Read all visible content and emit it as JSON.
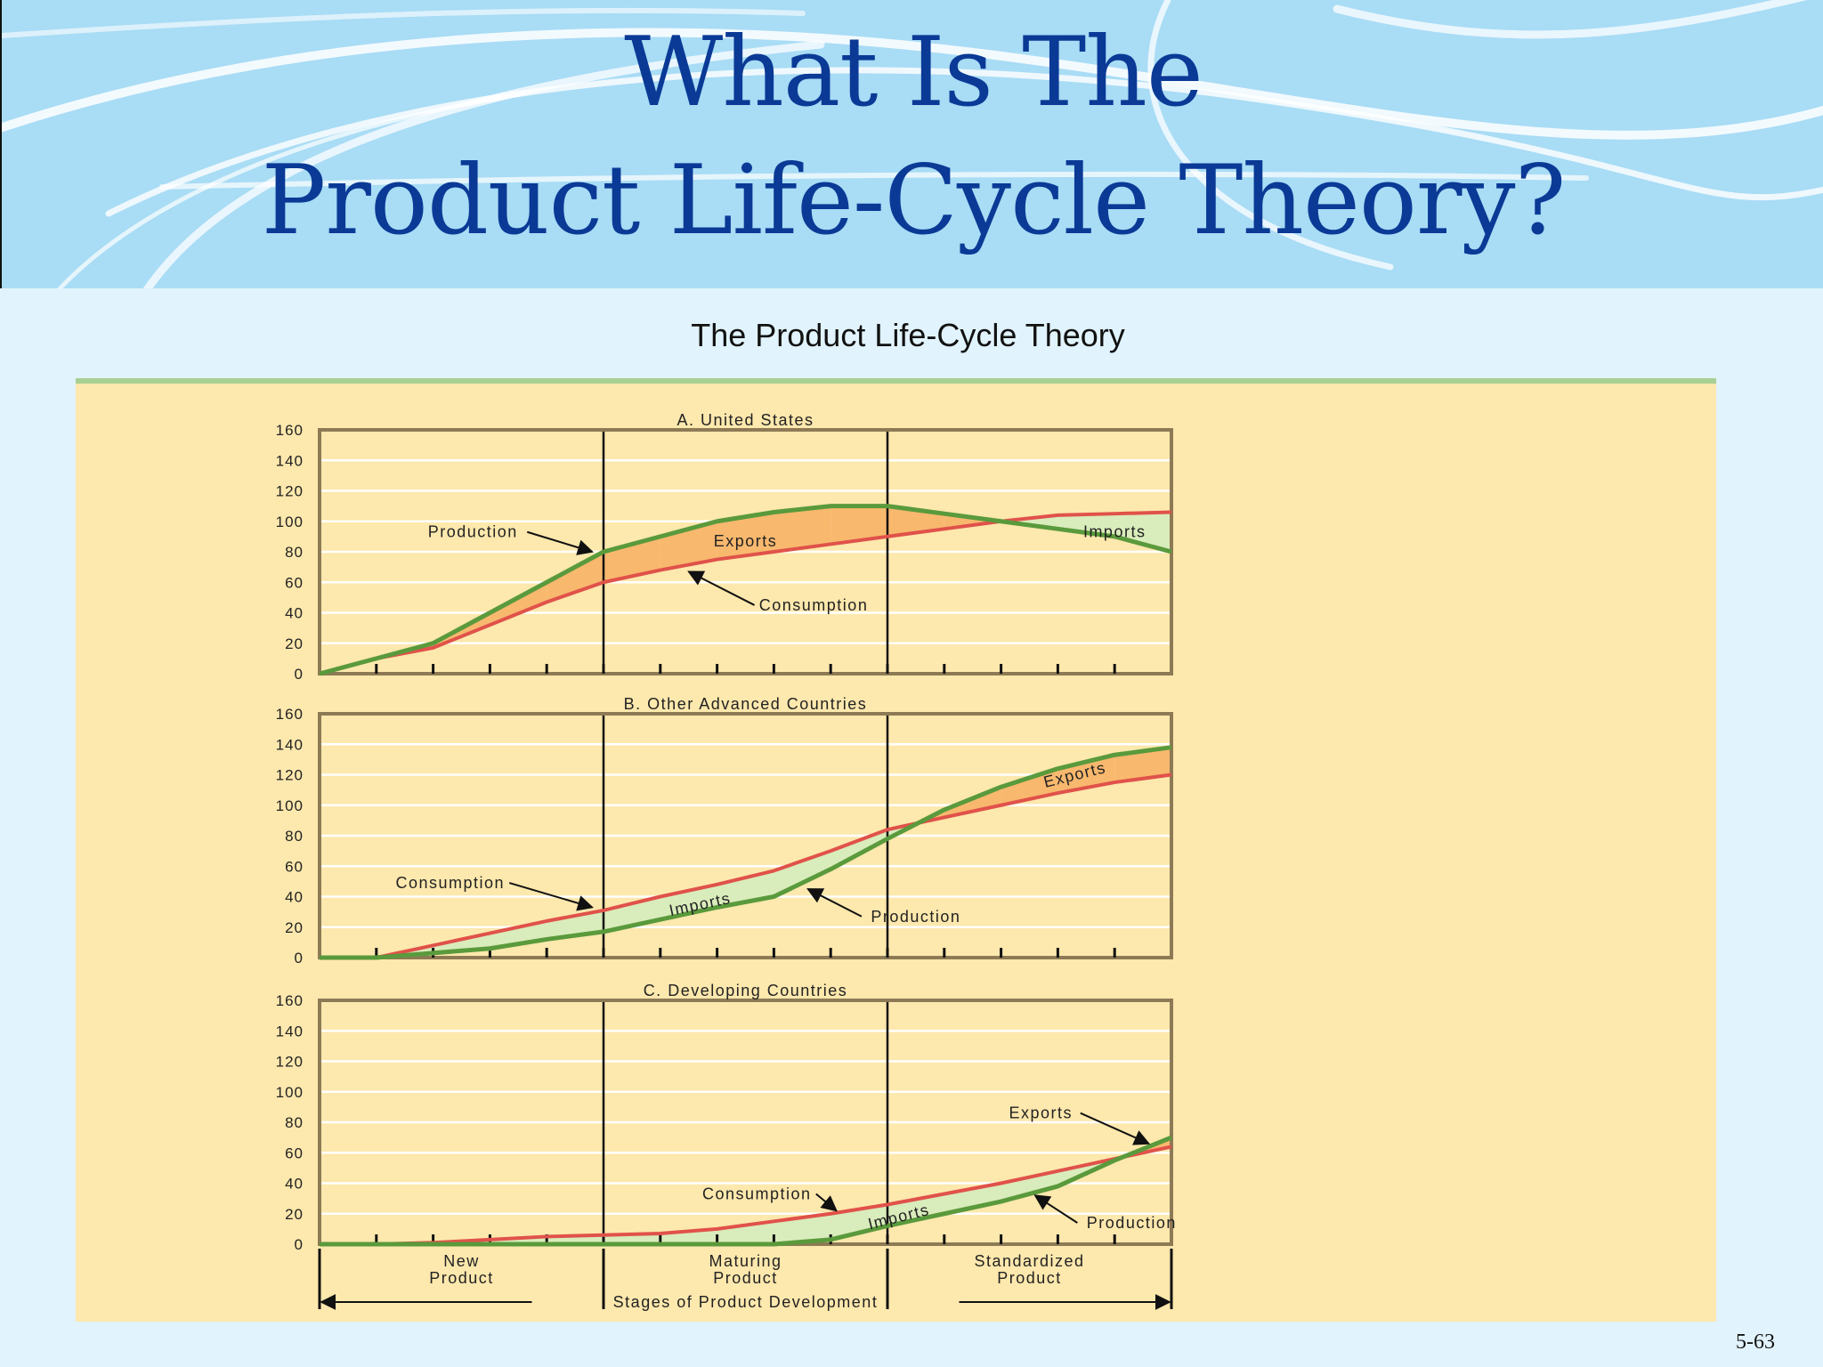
{
  "slide": {
    "title_line_1": "What Is The",
    "title_line_2": "Product Life-Cycle Theory?",
    "subtitle": "The Product Life-Cycle Theory",
    "slide_number": "5-63"
  },
  "colors": {
    "header_bg": "#a9dcf5",
    "title": "#0a3a96",
    "panel_bg": "#fde8ad",
    "production_line": "#5a9a3c",
    "consumption_line": "#e0524a",
    "export_fill": "#f8b86e",
    "import_fill": "#d9ecbb"
  },
  "chart_data": [
    {
      "type": "line",
      "title": "A. United States",
      "x": [
        0,
        1,
        2,
        3,
        4,
        5,
        6,
        7,
        8,
        9,
        10,
        11,
        12,
        13,
        14,
        15
      ],
      "ylim": [
        0,
        160
      ],
      "yticks": [
        "0",
        "20",
        "40",
        "60",
        "80",
        "100",
        "120",
        "140",
        "160"
      ],
      "series": [
        {
          "name": "Production",
          "values": [
            0,
            10,
            20,
            40,
            60,
            80,
            90,
            100,
            106,
            110,
            110,
            105,
            100,
            95,
            90,
            80
          ]
        },
        {
          "name": "Consumption",
          "values": [
            0,
            10,
            17,
            32,
            47,
            60,
            68,
            75,
            80,
            85,
            90,
            95,
            100,
            104,
            105,
            106
          ]
        }
      ],
      "annotations": [
        {
          "text": "Production",
          "x": 2.7,
          "y": 93,
          "arrow_to": [
            4.8,
            80
          ]
        },
        {
          "text": "Exports",
          "x": 7.5,
          "y": 87
        },
        {
          "text": "Consumption",
          "x": 8.7,
          "y": 45,
          "arrow_to": [
            6.5,
            67
          ]
        },
        {
          "text": "Imports",
          "x": 14.0,
          "y": 93
        }
      ]
    },
    {
      "type": "line",
      "title": "B. Other Advanced Countries",
      "x": [
        0,
        1,
        2,
        3,
        4,
        5,
        6,
        7,
        8,
        9,
        10,
        11,
        12,
        13,
        14,
        15
      ],
      "ylim": [
        0,
        160
      ],
      "yticks": [
        "0",
        "20",
        "40",
        "60",
        "80",
        "100",
        "120",
        "140",
        "160"
      ],
      "series": [
        {
          "name": "Production",
          "values": [
            0,
            0,
            3,
            6,
            12,
            17,
            25,
            33,
            40,
            58,
            78,
            97,
            112,
            124,
            133,
            138
          ]
        },
        {
          "name": "Consumption",
          "values": [
            0,
            0,
            8,
            16,
            24,
            31,
            40,
            48,
            57,
            70,
            84,
            92,
            100,
            108,
            115,
            120
          ]
        }
      ],
      "annotations": [
        {
          "text": "Consumption",
          "x": 2.3,
          "y": 49,
          "arrow_to": [
            4.8,
            33
          ]
        },
        {
          "text": "Imports",
          "x": 6.7,
          "y": 35,
          "rotate": -12
        },
        {
          "text": "Production",
          "x": 10.5,
          "y": 27,
          "arrow_to": [
            8.6,
            45
          ]
        },
        {
          "text": "Exports",
          "x": 13.3,
          "y": 120,
          "rotate": -14
        }
      ]
    },
    {
      "type": "line",
      "title": "C. Developing Countries",
      "x": [
        0,
        1,
        2,
        3,
        4,
        5,
        6,
        7,
        8,
        9,
        10,
        11,
        12,
        13,
        14,
        15
      ],
      "ylim": [
        0,
        160
      ],
      "yticks": [
        "0",
        "20",
        "40",
        "60",
        "80",
        "100",
        "120",
        "140",
        "160"
      ],
      "series": [
        {
          "name": "Production",
          "values": [
            0,
            0,
            0,
            0,
            0,
            0,
            0,
            0,
            0,
            3,
            12,
            20,
            28,
            38,
            55,
            70
          ]
        },
        {
          "name": "Consumption",
          "values": [
            0,
            0,
            1,
            3,
            5,
            6,
            7,
            10,
            15,
            20,
            26,
            33,
            40,
            48,
            56,
            64
          ]
        }
      ],
      "annotations": [
        {
          "text": "Exports",
          "x": 12.7,
          "y": 86,
          "arrow_to": [
            14.6,
            66
          ]
        },
        {
          "text": "Consumption",
          "x": 7.7,
          "y": 33,
          "arrow_to": [
            9.1,
            22
          ]
        },
        {
          "text": "Imports",
          "x": 10.2,
          "y": 18,
          "rotate": -14
        },
        {
          "text": "Production",
          "x": 14.3,
          "y": 14,
          "arrow_to": [
            12.6,
            32
          ]
        }
      ]
    }
  ],
  "x_axis": {
    "stage_dividers": [
      5,
      10
    ],
    "stages": [
      {
        "line1": "New",
        "line2": "Product",
        "x": 2.5
      },
      {
        "line1": "Maturing",
        "line2": "Product",
        "x": 7.5
      },
      {
        "line1": "Standardized",
        "line2": "Product",
        "x": 12.5
      }
    ],
    "label": "Stages of Product Development"
  }
}
